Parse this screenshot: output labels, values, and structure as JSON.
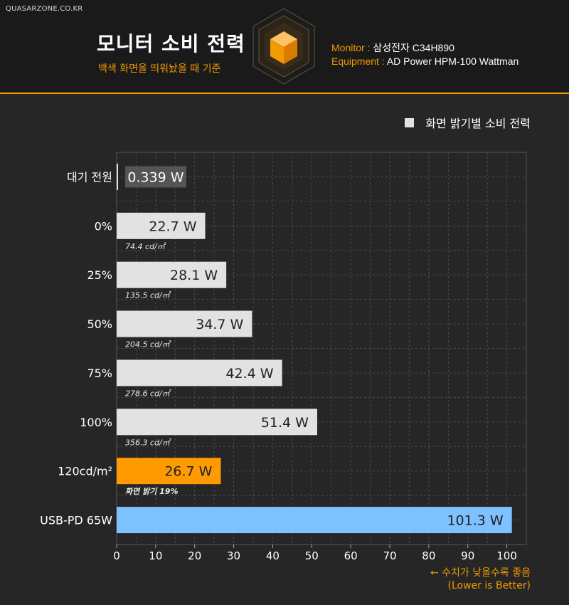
{
  "header": {
    "site": "QUASARZONE.CO.KR",
    "title": "모니터 소비 전력",
    "subtitle": "백색 화면을 띄워놨을 때 기준",
    "monitor_key": "Monitor :",
    "monitor_value": "삼성전자 C34H890",
    "equipment_key": "Equipment :",
    "equipment_value": "AD Power HPM-100 Wattman",
    "logo_icon": "cube-logo-icon"
  },
  "colors": {
    "accent": "#f29a00",
    "bar_default": "#e2e2e2",
    "bar_highlight": "#ff9a00",
    "bar_usb": "#7ec1ff",
    "standby_label_bg": "#555555"
  },
  "footer": {
    "note_line1": "← 수치가 낮을수록 좋음",
    "note_line2": "(Lower is Better)"
  },
  "chart_data": {
    "type": "bar",
    "orientation": "horizontal",
    "legend": [
      "화면 밝기별 소비 전력"
    ],
    "legend_position": "top-right",
    "categories": [
      "대기 전원",
      "0%",
      "25%",
      "50%",
      "75%",
      "100%",
      "120cd/m²",
      "USB-PD 65W"
    ],
    "values": [
      0.339,
      22.7,
      28.1,
      34.7,
      42.4,
      51.4,
      26.7,
      101.3
    ],
    "value_labels": [
      "0.339 W",
      "22.7 W",
      "28.1 W",
      "34.7 W",
      "42.4 W",
      "51.4 W",
      "26.7 W",
      "101.3 W"
    ],
    "sub_labels": [
      "",
      "74.4 cd/㎡",
      "135.5 cd/㎡",
      "204.5 cd/㎡",
      "278.6 cd/㎡",
      "356.3 cd/㎡",
      "화면 밝기 19%",
      ""
    ],
    "styles": [
      "standby",
      "default",
      "default",
      "default",
      "default",
      "default",
      "highlight",
      "usb"
    ],
    "xticks": [
      0,
      10,
      20,
      30,
      40,
      50,
      60,
      70,
      80,
      90,
      100
    ],
    "xlim": [
      0,
      105
    ],
    "grid": true
  }
}
